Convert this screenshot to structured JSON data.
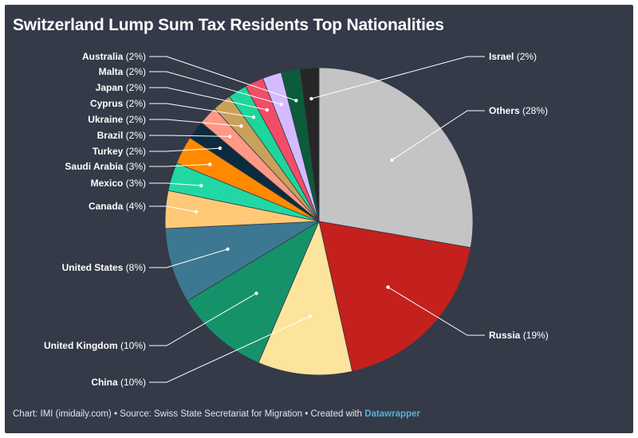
{
  "chart_data": {
    "type": "pie",
    "title": "Switzerland Lump Sum Tax Residents Top Nationalities",
    "slices": [
      {
        "label": "Others",
        "pct_label": "(28%)",
        "value": 28,
        "color": "#c4c4c4"
      },
      {
        "label": "Russia",
        "pct_label": "(19%)",
        "value": 19,
        "color": "#c4201d"
      },
      {
        "label": "China",
        "pct_label": "(10%)",
        "value": 10,
        "color": "#fde49c"
      },
      {
        "label": "United Kingdom",
        "pct_label": "(10%)",
        "value": 10,
        "color": "#16926a"
      },
      {
        "label": "United States",
        "pct_label": "(8%)",
        "value": 8,
        "color": "#3c7892"
      },
      {
        "label": "Canada",
        "pct_label": "(4%)",
        "value": 4,
        "color": "#ffc977"
      },
      {
        "label": "Mexico",
        "pct_label": "(3%)",
        "value": 3,
        "color": "#21d8a4"
      },
      {
        "label": "Saudi Arabia",
        "pct_label": "(3%)",
        "value": 3,
        "color": "#ff8a00"
      },
      {
        "label": "Turkey",
        "pct_label": "(2%)",
        "value": 2,
        "color": "#0c2b3e"
      },
      {
        "label": "Brazil",
        "pct_label": "(2%)",
        "value": 2,
        "color": "#ff9884"
      },
      {
        "label": "Ukraine",
        "pct_label": "(2%)",
        "value": 2,
        "color": "#c8a25a"
      },
      {
        "label": "Cyprus",
        "pct_label": "(2%)",
        "value": 2,
        "color": "#1ed69c"
      },
      {
        "label": "Japan",
        "pct_label": "(2%)",
        "value": 2,
        "color": "#f24d66"
      },
      {
        "label": "Malta",
        "pct_label": "(2%)",
        "value": 2,
        "color": "#d4bbff"
      },
      {
        "label": "Australia",
        "pct_label": "(2%)",
        "value": 2,
        "color": "#0a5c3a"
      },
      {
        "label": "Israel",
        "pct_label": "(2%)",
        "value": 2,
        "color": "#262626"
      }
    ]
  },
  "footer": {
    "chart_credit": "Chart: IMI (imidaily.com)",
    "separator": "•",
    "source": "Source: Swiss State Secretariat for Migration",
    "created_with": "Created with",
    "tool": "Datawrapper"
  }
}
